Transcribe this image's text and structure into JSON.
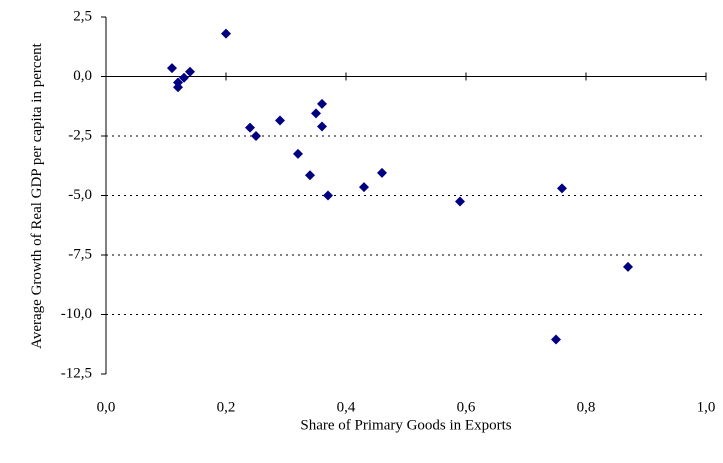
{
  "chart_data": {
    "type": "scatter",
    "x_label": "Share of Primary Goods in Exports",
    "y_label": "Average Growth of Real GDP per capita in percent",
    "color": "#000080",
    "x": [
      0.11,
      0.12,
      0.12,
      0.13,
      0.14,
      0.2,
      0.24,
      0.25,
      0.29,
      0.32,
      0.34,
      0.35,
      0.36,
      0.36,
      0.37,
      0.43,
      0.46,
      0.59,
      0.76,
      0.87,
      0.75
    ],
    "y": [
      0.35,
      -0.45,
      -0.25,
      -0.05,
      0.2,
      1.8,
      -2.15,
      -2.5,
      -1.85,
      -3.25,
      -4.15,
      -1.55,
      -1.15,
      -2.1,
      -5.0,
      -4.65,
      -4.05,
      -5.25,
      -4.7,
      -8.0,
      -11.05
    ],
    "xlim": [
      0,
      1
    ],
    "ylim": [
      -12.5,
      2.5
    ],
    "xticks": [
      {
        "value": 0,
        "label": "0,0"
      },
      {
        "value": 0.2,
        "label": "0,2"
      },
      {
        "value": 0.4,
        "label": "0,4"
      },
      {
        "value": 0.6,
        "label": "0,6"
      },
      {
        "value": 0.8,
        "label": "0,8"
      },
      {
        "value": 1,
        "label": "1,0"
      }
    ],
    "yticks": [
      {
        "value": 2.5,
        "label": "2,5"
      },
      {
        "value": 0,
        "label": "0,0"
      },
      {
        "value": -2.5,
        "label": "-2,5"
      },
      {
        "value": -5,
        "label": "-5,0"
      },
      {
        "value": -7.5,
        "label": "-7,5"
      },
      {
        "value": -10,
        "label": "-10,0"
      },
      {
        "value": -12.5,
        "label": "-12,5"
      }
    ],
    "grid": true
  }
}
